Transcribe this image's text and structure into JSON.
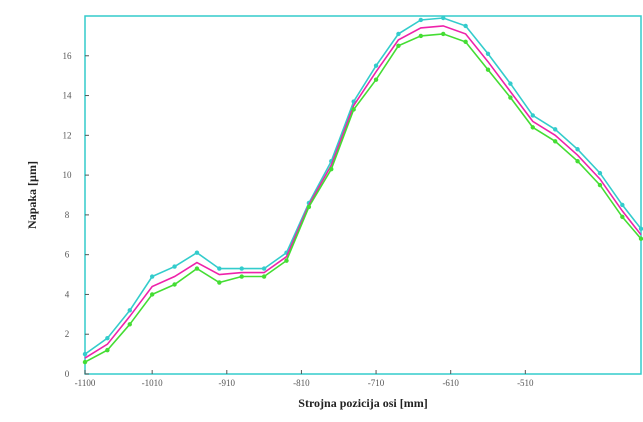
{
  "chart_data": {
    "type": "line",
    "title": "",
    "xlabel": "Strojna pozicija osi [mm]",
    "ylabel": "Napaka [µm]",
    "xlim": [
      -1100,
      -355
    ],
    "ylim": [
      0,
      18
    ],
    "x_ticks": [
      -1100,
      -1010,
      -910,
      -810,
      -710,
      -610,
      -510
    ],
    "x_tick_labels": [
      "-1100",
      "-1010",
      "-910",
      "-810",
      "-710",
      "-610",
      "-510"
    ],
    "y_ticks": [
      0,
      2,
      4,
      6,
      8,
      10,
      12,
      14,
      16
    ],
    "y_tick_labels": [
      "0",
      "2",
      "4",
      "6",
      "8",
      "10",
      "12",
      "14",
      "16"
    ],
    "grid": false,
    "legend": "none",
    "x": [
      -1100,
      -1070,
      -1040,
      -1010,
      -980,
      -950,
      -920,
      -890,
      -860,
      -830,
      -800,
      -770,
      -740,
      -710,
      -680,
      -650,
      -620,
      -590,
      -560,
      -530,
      -500,
      -470,
      -440,
      -410,
      -380,
      -355
    ],
    "series": [
      {
        "color": "#33cccc",
        "marker": true,
        "values": [
          1.0,
          1.8,
          3.2,
          4.9,
          5.4,
          6.1,
          5.3,
          5.3,
          5.3,
          6.1,
          8.6,
          10.7,
          13.7,
          15.5,
          17.1,
          17.8,
          17.9,
          17.5,
          16.1,
          14.6,
          13.0,
          12.3,
          11.3,
          10.1,
          8.5,
          7.3
        ]
      },
      {
        "color": "#ee22aa",
        "marker": false,
        "values": [
          0.8,
          1.5,
          2.9,
          4.4,
          4.9,
          5.6,
          5.0,
          5.1,
          5.1,
          5.9,
          8.5,
          10.5,
          13.5,
          15.2,
          16.8,
          17.4,
          17.5,
          17.1,
          15.7,
          14.2,
          12.7,
          12.0,
          11.0,
          9.8,
          8.2,
          7.0
        ]
      },
      {
        "color": "#44dd33",
        "marker": true,
        "values": [
          0.6,
          1.2,
          2.5,
          4.0,
          4.5,
          5.3,
          4.6,
          4.9,
          4.9,
          5.7,
          8.4,
          10.3,
          13.3,
          14.8,
          16.5,
          17.0,
          17.1,
          16.7,
          15.3,
          13.9,
          12.4,
          11.7,
          10.7,
          9.5,
          7.9,
          6.8
        ]
      }
    ],
    "colors": {
      "frame": "#33cccc",
      "axis": "#555555"
    }
  }
}
